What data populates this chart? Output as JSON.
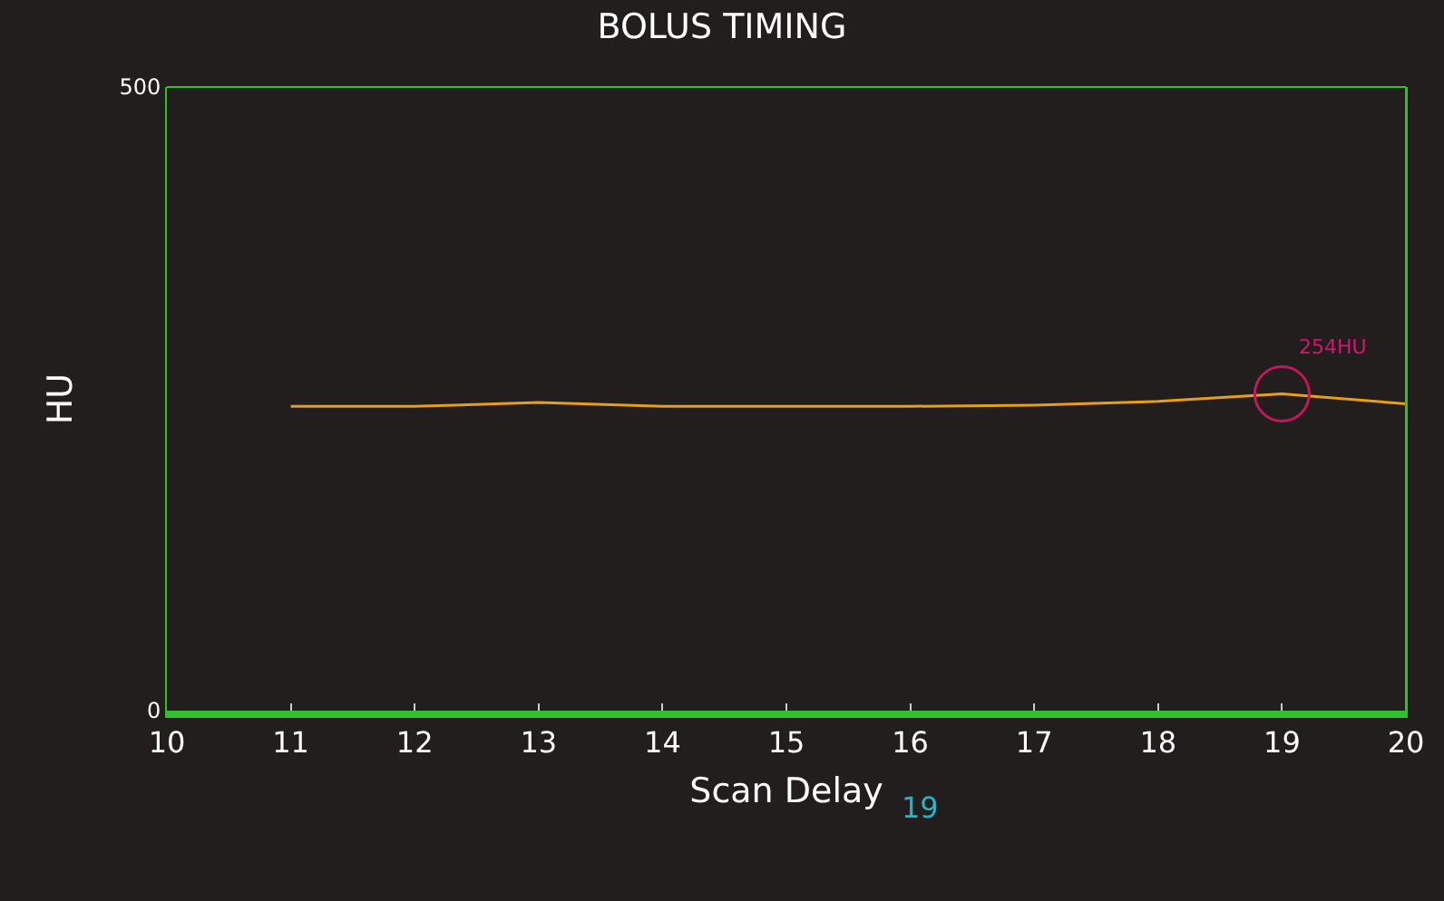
{
  "chart_data": {
    "type": "line",
    "title": "BOLUS TIMING",
    "xlabel": "Scan Delay",
    "ylabel": "HU",
    "annotations": [
      "19",
      {
        "text": "254HU",
        "x": 19,
        "y": 254
      }
    ],
    "x": [
      11,
      12,
      13,
      14,
      15,
      16,
      17,
      18,
      19,
      20
    ],
    "series": [
      {
        "color": "#e8a010",
        "values": [
          244,
          244,
          247,
          244,
          244,
          244,
          245,
          248,
          254,
          246
        ]
      },
      {
        "type": "scatter",
        "color": "#c0185a",
        "x": [
          19
        ],
        "values": [
          254
        ],
        "marker": "circle"
      }
    ],
    "xlim": [
      10,
      20
    ],
    "xticks": [
      10,
      11,
      12,
      13,
      14,
      15,
      16,
      17,
      18,
      19,
      20
    ],
    "ylim": [
      0,
      500
    ],
    "yticks": [
      0,
      500
    ],
    "grid": false,
    "legend": false
  }
}
